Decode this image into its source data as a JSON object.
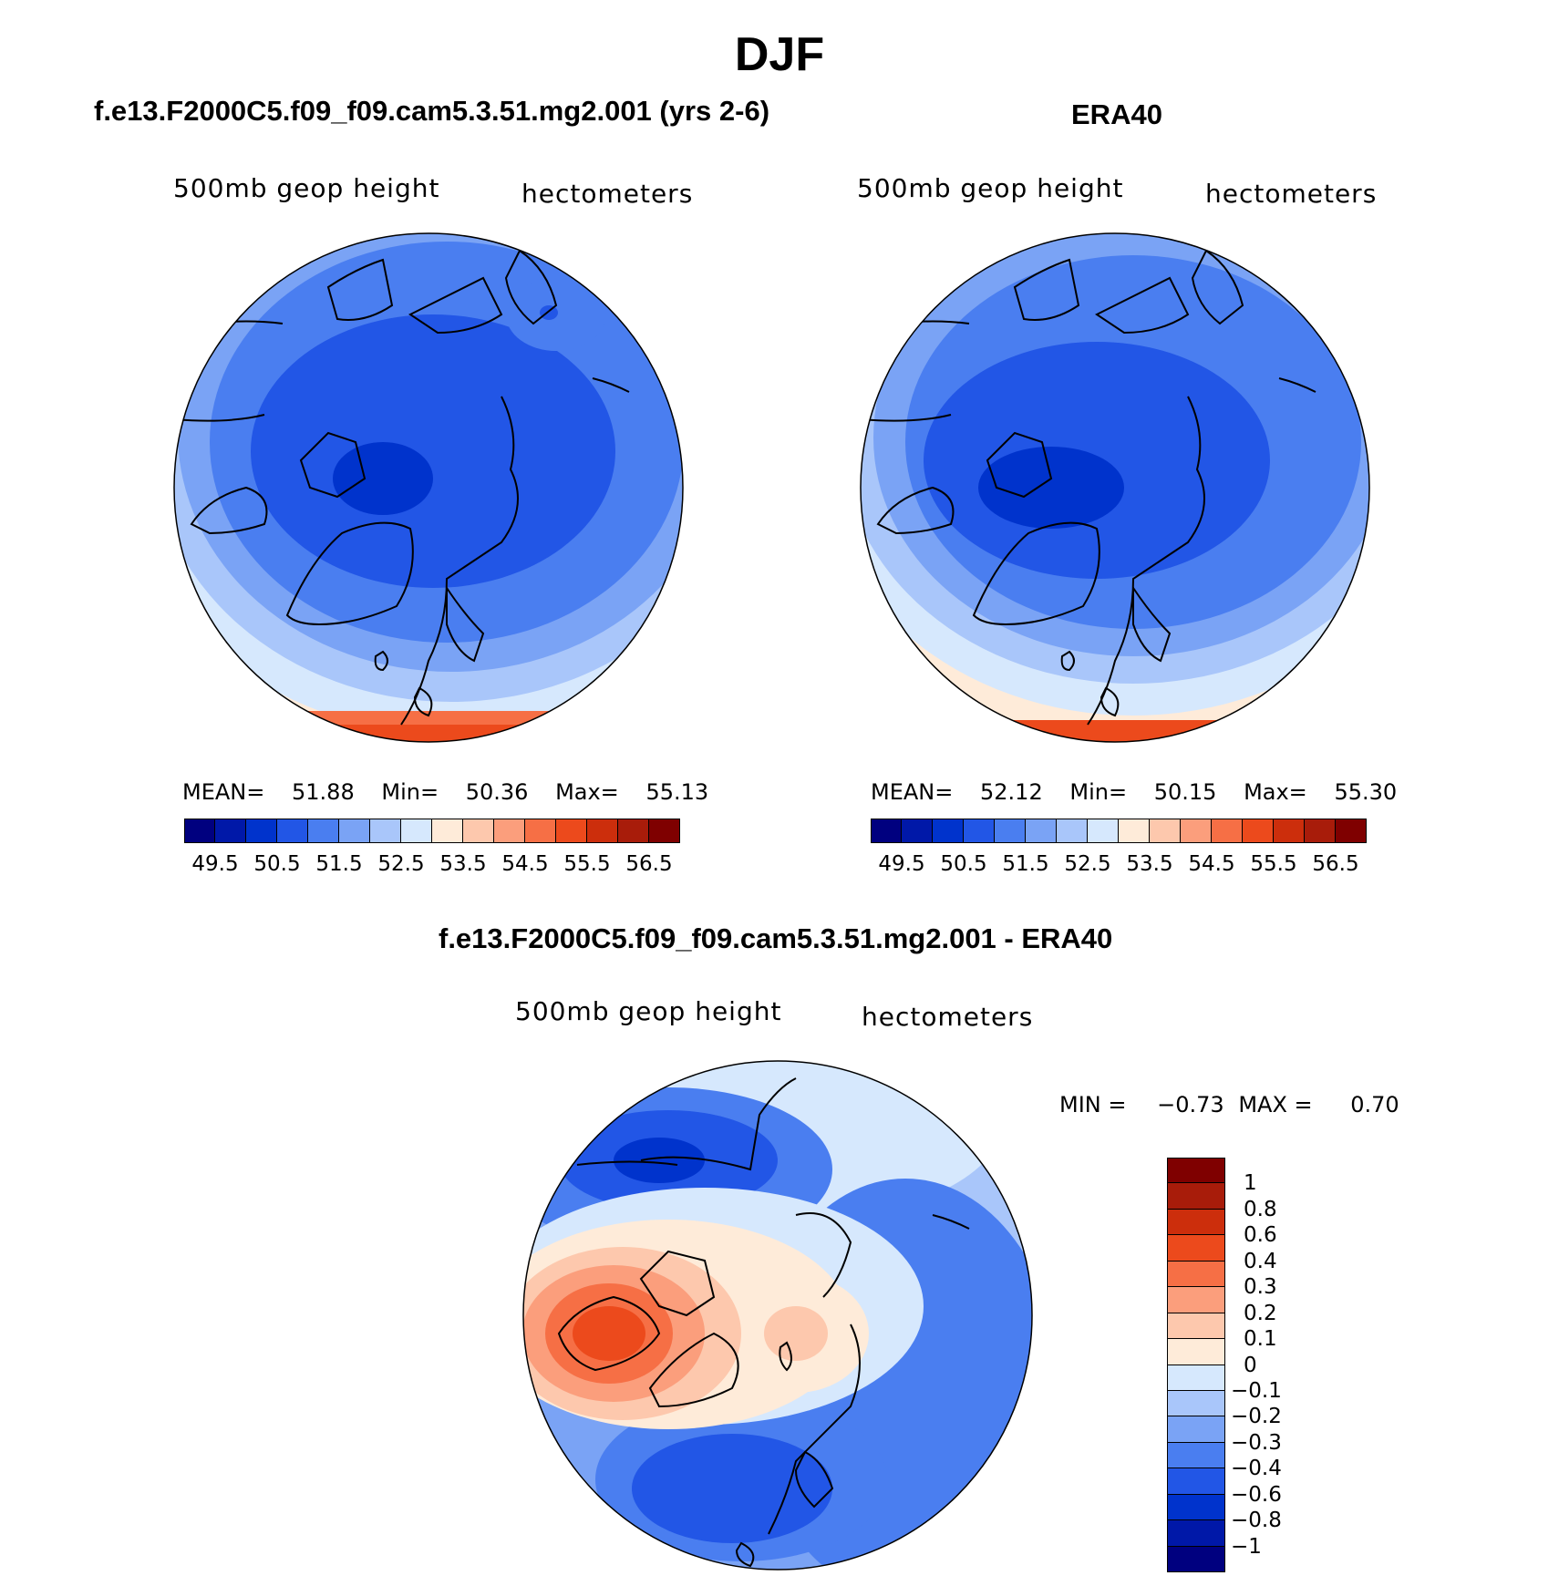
{
  "figure": {
    "title": "DJF"
  },
  "panels": {
    "model": {
      "title": "f.e13.F2000C5.f09_f09.cam5.3.51.mg2.001 (yrs 2-6)",
      "variable": "500mb geop height",
      "units": "hectometers",
      "mean_label": "MEAN=",
      "mean": "51.88",
      "min_label": "Min=",
      "min": "50.36",
      "max_label": "Max=",
      "max": "55.13"
    },
    "obs": {
      "title": "ERA40",
      "variable": "500mb geop height",
      "units": "hectometers",
      "mean_label": "MEAN=",
      "mean": "52.12",
      "min_label": "Min=",
      "min": "50.15",
      "max_label": "Max=",
      "max": "55.30"
    },
    "diff": {
      "title": "f.e13.F2000C5.f09_f09.cam5.3.51.mg2.001 - ERA40",
      "variable": "500mb geop height",
      "units": "hectometers",
      "min_label": "MIN =",
      "min": "−0.73",
      "max_label": "MAX =",
      "max": "0.70"
    }
  },
  "colorbars": {
    "field": {
      "colors": [
        "#00007f",
        "#0018a8",
        "#0033cc",
        "#2256e6",
        "#4a7ef0",
        "#7aa3f5",
        "#a9c6fa",
        "#d6e8fd",
        "#feebd9",
        "#fdc8ad",
        "#fb9e7c",
        "#f66f45",
        "#ec4a1c",
        "#cc2e0c",
        "#a81c0a",
        "#7f0000"
      ],
      "tick_labels": [
        "49.5",
        "50.5",
        "51.5",
        "52.5",
        "53.5",
        "54.5",
        "55.5",
        "56.5"
      ]
    },
    "diff": {
      "colors": [
        "#00007f",
        "#0018a8",
        "#0033cc",
        "#2256e6",
        "#4a7ef0",
        "#7aa3f5",
        "#a9c6fa",
        "#d6e8fd",
        "#feebd9",
        "#fdc8ad",
        "#fb9e7c",
        "#f66f45",
        "#ec4a1c",
        "#cc2e0c",
        "#a81c0a",
        "#7f0000"
      ],
      "tick_labels": [
        "1",
        "0.8",
        "0.6",
        "0.4",
        "0.3",
        "0.2",
        "0.1",
        "0",
        "−0.1",
        "−0.2",
        "−0.3",
        "−0.4",
        "−0.6",
        "−0.8",
        "−1"
      ]
    }
  },
  "map": {
    "projection": "north polar stereographic",
    "ocean_land_outline_color": "#000000"
  }
}
